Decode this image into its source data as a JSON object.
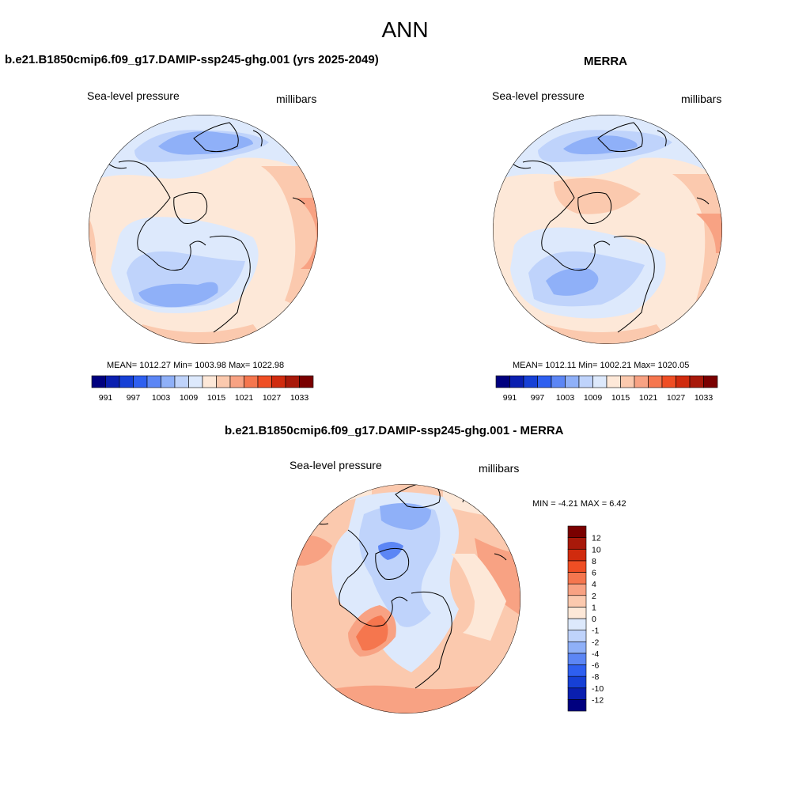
{
  "figure": {
    "season_title": "ANN"
  },
  "panels": [
    {
      "title": "b.e21.B1850cmip6.f09_g17.DAMIP-ssp245-ghg.001 (yrs 2025-2049)",
      "variable": "Sea-level pressure",
      "units": "millibars",
      "stats": "MEAN= 1012.27  Min= 1003.98  Max= 1022.98"
    },
    {
      "title": "MERRA",
      "variable": "Sea-level pressure",
      "units": "millibars",
      "stats": "MEAN= 1012.11  Min= 1002.21  Max= 1020.05"
    },
    {
      "title": "b.e21.B1850cmip6.f09_g17.DAMIP-ssp245-ghg.001 - MERRA",
      "variable": "Sea-level pressure",
      "units": "millibars",
      "stats": "MIN =  -4.21 MAX =   6.42"
    }
  ],
  "colorbars": {
    "absolute": {
      "colors": [
        "#00007f",
        "#0a1fb0",
        "#1640d6",
        "#2e5ff0",
        "#5c86f5",
        "#8fb0f8",
        "#bfd3fb",
        "#dde9fc",
        "#fde8d8",
        "#fbc9ae",
        "#f8a283",
        "#f5764e",
        "#ef4e24",
        "#d02b0e",
        "#a8190a",
        "#7a0000"
      ],
      "labels": [
        "991",
        "997",
        "1003",
        "1009",
        "1015",
        "1021",
        "1027",
        "1033"
      ]
    },
    "difference": {
      "colors": [
        "#00007f",
        "#0a1fb0",
        "#1640d6",
        "#2e5ff0",
        "#5c86f5",
        "#8fb0f8",
        "#bfd3fb",
        "#dde9fc",
        "#fde8d8",
        "#fbc9ae",
        "#f8a283",
        "#f5764e",
        "#ef4e24",
        "#d02b0e",
        "#a8190a",
        "#7a0000"
      ],
      "labels": [
        "-12",
        "-10",
        "-8",
        "-6",
        "-4",
        "-2",
        "-1",
        "0",
        "1",
        "2",
        "4",
        "6",
        "8",
        "10",
        "12"
      ]
    }
  }
}
